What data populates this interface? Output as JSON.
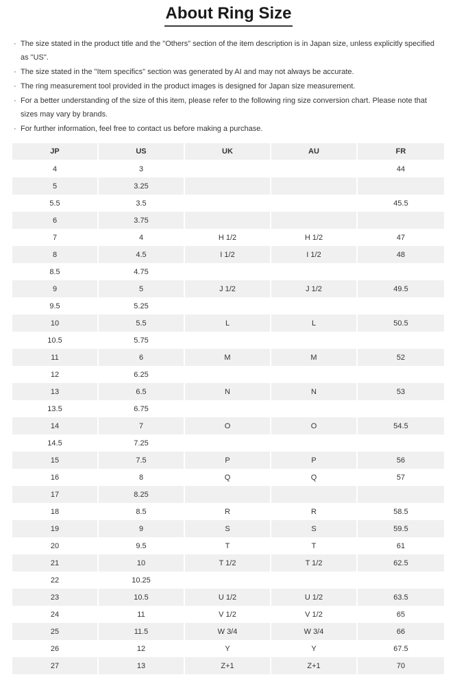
{
  "page": {
    "title": "About Ring Size",
    "bullet_marker": "·",
    "bullets": [
      "The size stated in the product title and the \"Others\" section of the item description is in Japan size, unless explicitly specified as \"US\".",
      "The size stated in the \"Item specifics\" section was generated by AI and may not always be accurate.",
      "The ring measurement tool provided in the product images is designed for Japan size measurement.",
      "For a better understanding of the size of this item, please refer to the following ring size conversion chart. Please note that sizes may vary by brands.",
      "For further information, feel free to contact us before making a purchase."
    ]
  },
  "table": {
    "columns": [
      "JP",
      "US",
      "UK",
      "AU",
      "FR"
    ],
    "rows": [
      [
        "4",
        "3",
        "",
        "",
        "44"
      ],
      [
        "5",
        "3.25",
        "",
        "",
        ""
      ],
      [
        "5.5",
        "3.5",
        "",
        "",
        "45.5"
      ],
      [
        "6",
        "3.75",
        "",
        "",
        ""
      ],
      [
        "7",
        "4",
        "H 1/2",
        "H 1/2",
        "47"
      ],
      [
        "8",
        "4.5",
        "I 1/2",
        "I 1/2",
        "48"
      ],
      [
        "8.5",
        "4.75",
        "",
        "",
        ""
      ],
      [
        "9",
        "5",
        "J 1/2",
        "J 1/2",
        "49.5"
      ],
      [
        "9.5",
        "5.25",
        "",
        "",
        ""
      ],
      [
        "10",
        "5.5",
        "L",
        "L",
        "50.5"
      ],
      [
        "10.5",
        "5.75",
        "",
        "",
        ""
      ],
      [
        "11",
        "6",
        "M",
        "M",
        "52"
      ],
      [
        "12",
        "6.25",
        "",
        "",
        ""
      ],
      [
        "13",
        "6.5",
        "N",
        "N",
        "53"
      ],
      [
        "13.5",
        "6.75",
        "",
        "",
        ""
      ],
      [
        "14",
        "7",
        "O",
        "O",
        "54.5"
      ],
      [
        "14.5",
        "7.25",
        "",
        "",
        ""
      ],
      [
        "15",
        "7.5",
        "P",
        "P",
        "56"
      ],
      [
        "16",
        "8",
        "Q",
        "Q",
        "57"
      ],
      [
        "17",
        "8.25",
        "",
        "",
        ""
      ],
      [
        "18",
        "8.5",
        "R",
        "R",
        "58.5"
      ],
      [
        "19",
        "9",
        "S",
        "S",
        "59.5"
      ],
      [
        "20",
        "9.5",
        "T",
        "T",
        "61"
      ],
      [
        "21",
        "10",
        "T 1/2",
        "T 1/2",
        "62.5"
      ],
      [
        "22",
        "10.25",
        "",
        "",
        ""
      ],
      [
        "23",
        "10.5",
        "U 1/2",
        "U 1/2",
        "63.5"
      ],
      [
        "24",
        "11",
        "V 1/2",
        "V 1/2",
        "65"
      ],
      [
        "25",
        "11.5",
        "W 3/4",
        "W 3/4",
        "66"
      ],
      [
        "26",
        "12",
        "Y",
        "Y",
        "67.5"
      ],
      [
        "27",
        "13",
        "Z+1",
        "Z+1",
        "70"
      ]
    ]
  },
  "colors": {
    "header_bg": "#f0f0f0",
    "row_alt_bg": "#f0f0f0",
    "text": "#333333",
    "title_text": "#1a1a1a",
    "cell_separator": "#ffffff"
  }
}
